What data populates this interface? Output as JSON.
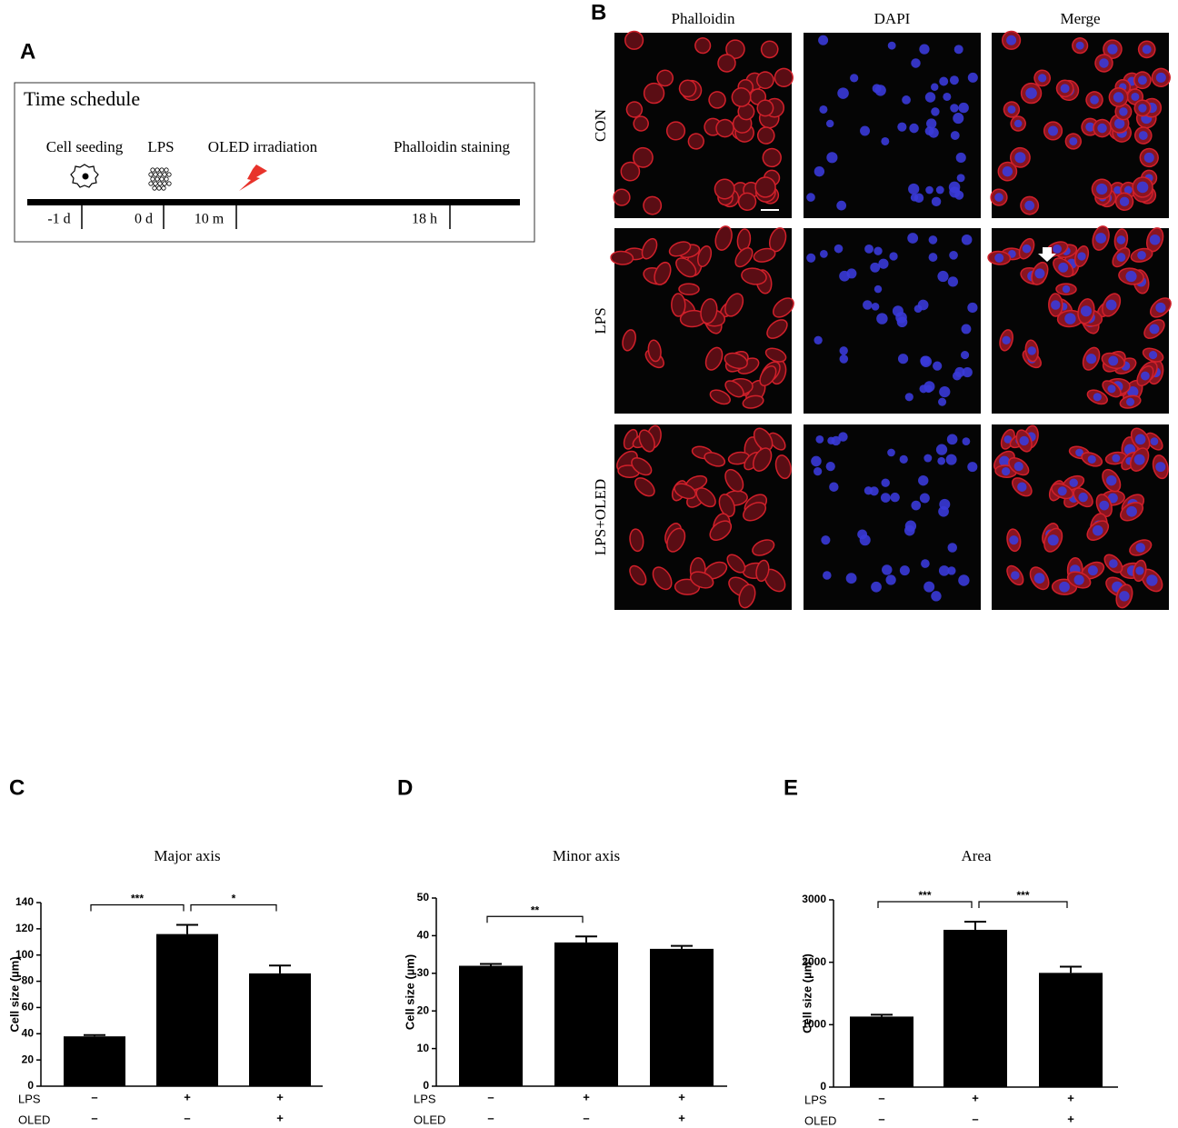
{
  "panel_a": {
    "letter": "A",
    "title": "Time schedule",
    "events": [
      "Cell seeding",
      "LPS",
      "OLED irradiation",
      "Phalloidin  staining"
    ],
    "timepoints": [
      "-1 d",
      "0 d",
      "10 m",
      "18 h"
    ]
  },
  "panel_b": {
    "letter": "B",
    "columns": [
      "Phalloidin",
      "DAPI",
      "Merge"
    ],
    "rows": [
      "CON",
      "LPS",
      "LPS+OLED"
    ]
  },
  "chart_data": [
    {
      "type": "bar",
      "letter": "C",
      "title": "Major axis",
      "y_label": "Cell size (µm)",
      "values": [
        38,
        116,
        86
      ],
      "errors": [
        1,
        7,
        6
      ],
      "color": "#000000",
      "ylim": [
        0,
        140
      ],
      "yticks": [
        0,
        20,
        40,
        60,
        80,
        100,
        120,
        140
      ],
      "conditions": [
        {
          "label": "LPS",
          "signs": [
            "–",
            "+",
            "+"
          ]
        },
        {
          "label": "OLED",
          "signs": [
            "–",
            "–",
            "+"
          ]
        }
      ],
      "brackets": [
        "***",
        "*"
      ]
    },
    {
      "type": "bar",
      "letter": "D",
      "title": "Minor axis",
      "y_label": "Cell size (µm)",
      "values": [
        32,
        38.2,
        36.5
      ],
      "errors": [
        0.5,
        1.6,
        0.8
      ],
      "color": "#000000",
      "ylim": [
        0,
        50
      ],
      "yticks": [
        0,
        10,
        20,
        30,
        40,
        50
      ],
      "conditions": [
        {
          "label": "LPS",
          "signs": [
            "–",
            "+",
            "+"
          ]
        },
        {
          "label": "OLED",
          "signs": [
            "–",
            "–",
            "+"
          ]
        }
      ],
      "brackets": [
        "**"
      ]
    },
    {
      "type": "bar",
      "letter": "E",
      "title": "Area",
      "y_label": "Cell size (µm²)",
      "values": [
        1130,
        2520,
        1830
      ],
      "errors": [
        30,
        130,
        100
      ],
      "color": "#000000",
      "ylim": [
        0,
        3000
      ],
      "yticks": [
        0,
        1000,
        2000,
        3000
      ],
      "conditions": [
        {
          "label": "LPS",
          "signs": [
            "–",
            "+",
            "+"
          ]
        },
        {
          "label": "OLED",
          "signs": [
            "–",
            "–",
            "+"
          ]
        }
      ],
      "brackets": [
        "***",
        "***"
      ]
    }
  ]
}
